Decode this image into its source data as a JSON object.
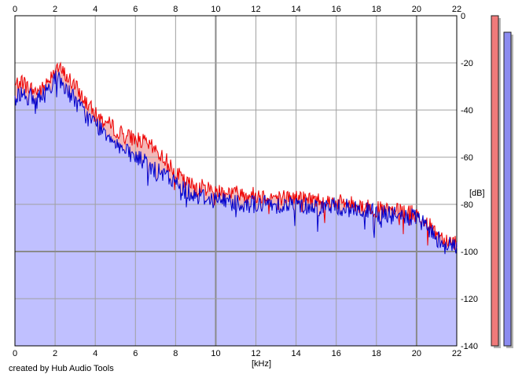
{
  "app": {
    "credit": "created by Hub Audio Tools"
  },
  "colors": {
    "left_channel": "#ee0000",
    "left_fill": "#f3b8b8",
    "right_channel": "#0000cc",
    "right_fill": "#c0c0ff",
    "grid": "#a0a0a0",
    "meter_left": "#f07a7a",
    "meter_right": "#8c8cf0"
  },
  "chart_data": {
    "type": "area",
    "title": "",
    "xlabel": "[kHz]",
    "ylabel": "[dB]",
    "xlim": [
      0,
      22
    ],
    "ylim": [
      -140,
      0
    ],
    "xticks": [
      "0",
      "2",
      "4",
      "6",
      "8",
      "10",
      "12",
      "14",
      "16",
      "18",
      "20",
      "22"
    ],
    "yticks": [
      "0",
      "-20",
      "-40",
      "-60",
      "-80",
      "-100",
      "-120",
      "-140"
    ],
    "grid": true,
    "series": [
      {
        "channel": "left",
        "color": "#ee0000",
        "x": [
          0,
          0.3,
          0.6,
          1.0,
          1.4,
          1.8,
          2.0,
          2.5,
          3.0,
          3.5,
          4.0,
          4.5,
          5.0,
          5.5,
          6.0,
          6.5,
          7.0,
          7.5,
          8.0,
          8.5,
          9.0,
          10.0,
          11.0,
          12.0,
          13.0,
          14.0,
          15.0,
          16.0,
          17.0,
          18.0,
          19.0,
          20.0,
          20.5,
          21.0,
          21.5,
          22.0
        ],
        "values": [
          -30,
          -27,
          -30,
          -32,
          -31,
          -25,
          -21,
          -25,
          -30,
          -36,
          -42,
          -45,
          -48,
          -51,
          -52,
          -54,
          -57,
          -61,
          -66,
          -71,
          -72,
          -74,
          -75,
          -76,
          -77,
          -77,
          -78,
          -79,
          -80,
          -82,
          -83,
          -84,
          -88,
          -92,
          -95,
          -96
        ]
      },
      {
        "channel": "right",
        "color": "#0000cc",
        "x": [
          0,
          0.3,
          0.6,
          1.0,
          1.4,
          1.8,
          2.0,
          2.5,
          3.0,
          3.5,
          4.0,
          4.5,
          5.0,
          5.5,
          6.0,
          6.5,
          7.0,
          7.5,
          8.0,
          8.5,
          9.0,
          10.0,
          11.0,
          12.0,
          13.0,
          14.0,
          15.0,
          16.0,
          17.0,
          18.0,
          19.0,
          20.0,
          20.5,
          21.0,
          21.5,
          22.0
        ],
        "values": [
          -36,
          -32,
          -34,
          -36,
          -34,
          -29,
          -26,
          -30,
          -36,
          -42,
          -46,
          -49,
          -53,
          -58,
          -60,
          -62,
          -66,
          -68,
          -71,
          -74,
          -76,
          -78,
          -79,
          -80,
          -80,
          -80,
          -81,
          -81,
          -82,
          -84,
          -85,
          -86,
          -90,
          -94,
          -97,
          -98
        ]
      }
    ]
  },
  "meters": {
    "left_level_db": 0,
    "right_level_db": 0
  }
}
